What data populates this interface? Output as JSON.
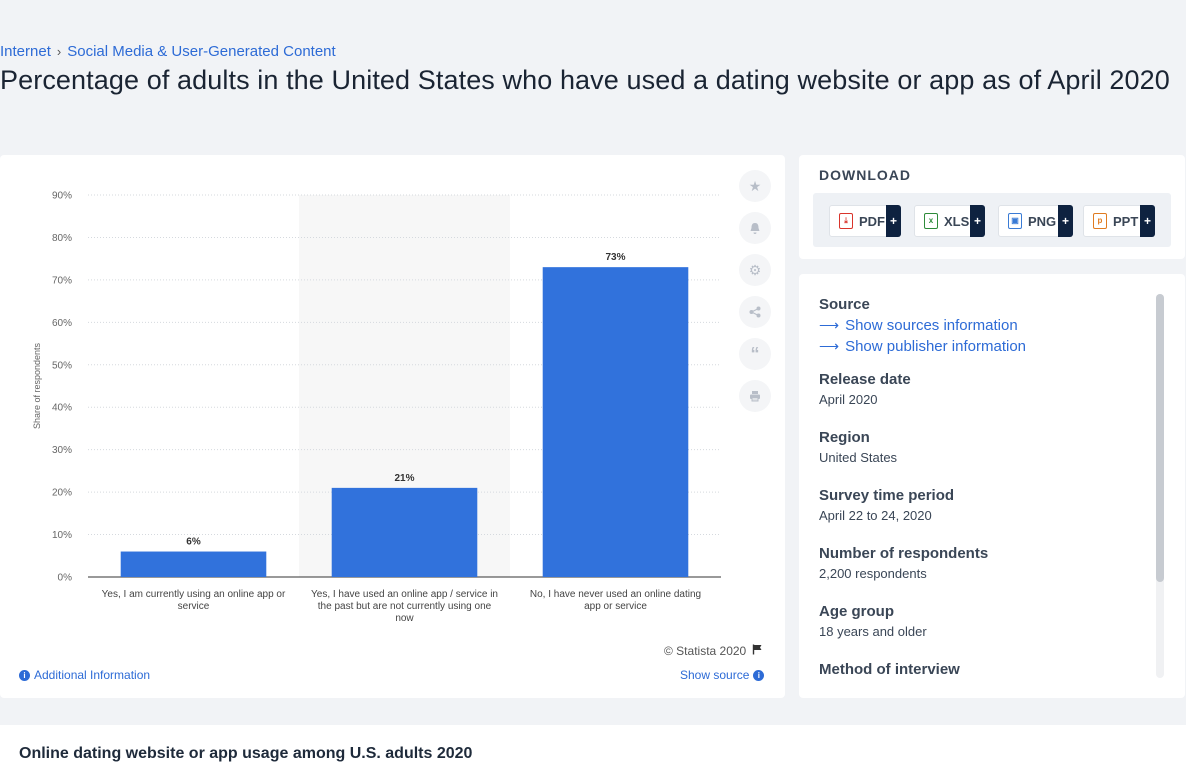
{
  "breadcrumb": {
    "items": [
      "Internet",
      "Social Media & User-Generated Content"
    ],
    "separator": "›"
  },
  "page": {
    "title": "Percentage of adults in the United States who have used a dating website or app as of April 2020"
  },
  "chart_tools": {
    "icons": [
      "star-icon",
      "bell-icon",
      "gear-icon",
      "share-icon",
      "quote-icon",
      "print-icon"
    ]
  },
  "download": {
    "title": "DOWNLOAD",
    "buttons": [
      {
        "label": "PDF",
        "plus": "+",
        "color": "#d9342b"
      },
      {
        "label": "XLS",
        "plus": "+",
        "color": "#2e8b3a"
      },
      {
        "label": "PNG",
        "plus": "+",
        "color": "#3a7bd5"
      },
      {
        "label": "PPT",
        "plus": "+",
        "color": "#e07b20"
      }
    ]
  },
  "info": {
    "source_label": "Source",
    "show_sources": "Show sources information",
    "show_publisher": "Show publisher information",
    "fields": [
      {
        "label": "Release date",
        "value": "April 2020"
      },
      {
        "label": "Region",
        "value": "United States"
      },
      {
        "label": "Survey time period",
        "value": "April 22 to 24, 2020"
      },
      {
        "label": "Number of respondents",
        "value": "2,200 respondents"
      },
      {
        "label": "Age group",
        "value": "18 years and older"
      },
      {
        "label": "Method of interview",
        "value": ""
      }
    ]
  },
  "chart_footer": {
    "copyright": "© Statista 2020",
    "additional_info": "Additional Information",
    "show_source": "Show source"
  },
  "bottom": {
    "title": "Online dating website or app usage among U.S. adults 2020"
  },
  "chart_data": {
    "type": "bar",
    "categories": [
      "Yes, I am currently using an online app or service",
      "Yes, I have used an online app / service in the past but are not currently using one now",
      "No, I have never used an online dating app or service"
    ],
    "category_lines": [
      [
        "Yes, I am currently using an online app or",
        "service"
      ],
      [
        "Yes, I have used an online app / service in",
        "the past but are not currently using one",
        "now"
      ],
      [
        "No, I have never used an online dating",
        "app or service"
      ]
    ],
    "values": [
      6,
      21,
      73
    ],
    "value_labels": [
      "6%",
      "21%",
      "73%"
    ],
    "ylabel": "Share of respondents",
    "ylim": [
      0,
      90
    ],
    "yticks": [
      0,
      10,
      20,
      30,
      40,
      50,
      60,
      70,
      80,
      90
    ],
    "ytick_labels": [
      "0%",
      "10%",
      "20%",
      "30%",
      "40%",
      "50%",
      "60%",
      "70%",
      "80%",
      "90%"
    ],
    "grid": true,
    "highlighted_category": 1,
    "bar_color": "#3172dc"
  }
}
